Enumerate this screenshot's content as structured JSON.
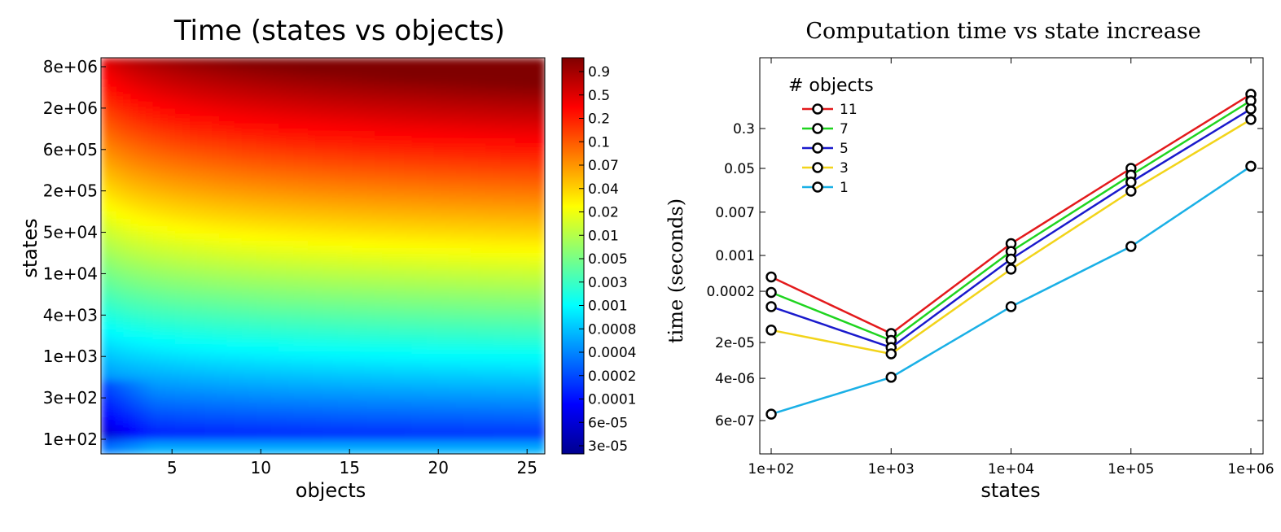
{
  "chart_data": [
    {
      "type": "heatmap",
      "title": "Time (states vs objects)",
      "xlabel": "objects",
      "ylabel": "states",
      "x_ticks": [
        5,
        10,
        15,
        20,
        25
      ],
      "xlim": [
        1,
        26
      ],
      "y_ticks": [
        "8e+06",
        "2e+06",
        "6e+05",
        "2e+05",
        "5e+04",
        "1e+04",
        "4e+03",
        "1e+03",
        "3e+02",
        "1e+02"
      ],
      "colorbar_ticks": [
        "0.9",
        "0.5",
        "0.2",
        "0.1",
        "0.07",
        "0.04",
        "0.02",
        "0.01",
        "0.005",
        "0.003",
        "0.001",
        "0.0008",
        "0.0004",
        "0.0002",
        "0.0001",
        "6e-05",
        "3e-05"
      ],
      "colormap": "jet",
      "trend": "time grows with states (strongly) and with objects (weakly); darkest blue at few objects and few states"
    },
    {
      "type": "line",
      "title": "Computation time vs state increase",
      "xlabel": "states",
      "ylabel": "time (seconds)",
      "x": [
        "1e+02",
        "1e+03",
        "1e+04",
        "1e+05",
        "1e+06"
      ],
      "x_ticks": [
        "1e+02",
        "1e+03",
        "1e+04",
        "1e+05",
        "1e+06"
      ],
      "y_ticks": [
        "0.3",
        "0.05",
        "0.007",
        "0.001",
        "0.0002",
        "2e-05",
        "4e-06",
        "6e-07"
      ],
      "y_scale": "log",
      "legend_title": "# objects",
      "legend_position": "top-left",
      "series": [
        {
          "name": "11",
          "color": "#e31a1c",
          "values": [
            0.00038,
            3e-05,
            0.0017,
            0.05,
            1.4
          ]
        },
        {
          "name": "7",
          "color": "#1fd41f",
          "values": [
            0.00019,
            2.2e-05,
            0.0012,
            0.037,
            1.05
          ]
        },
        {
          "name": "5",
          "color": "#1a1acc",
          "values": [
            0.0001,
            1.6e-05,
            0.00085,
            0.027,
            0.72
          ]
        },
        {
          "name": "3",
          "color": "#f2d41a",
          "values": [
            3.5e-05,
            1.2e-05,
            0.00054,
            0.018,
            0.45
          ]
        },
        {
          "name": "1",
          "color": "#1ab0e6",
          "values": 8e-07,
          "values_list": [
            8e-07,
            4.2e-06,
            0.0001,
            0.0015,
            0.055
          ]
        }
      ]
    }
  ]
}
